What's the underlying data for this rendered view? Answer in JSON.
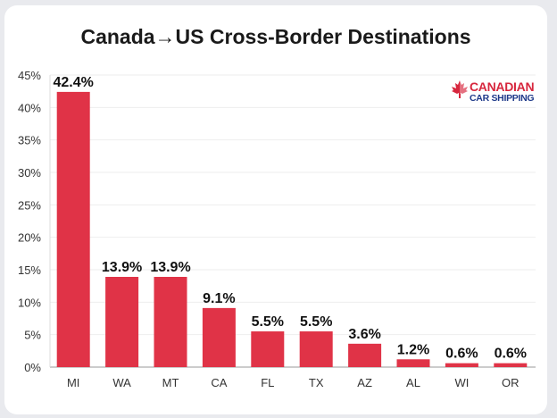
{
  "chart_data": {
    "type": "bar",
    "title": "Canada→US Cross-Border Destinations",
    "categories": [
      "MI",
      "WA",
      "MT",
      "CA",
      "FL",
      "TX",
      "AZ",
      "AL",
      "WI",
      "OR"
    ],
    "values": [
      42.4,
      13.9,
      13.9,
      9.1,
      5.5,
      5.5,
      3.6,
      1.2,
      0.6,
      0.6
    ],
    "data_labels": [
      "42.4%",
      "13.9%",
      "13.9%",
      "9.1%",
      "5.5%",
      "5.5%",
      "3.6%",
      "1.2%",
      "0.6%",
      "0.6%"
    ],
    "xlabel": "",
    "ylabel": "",
    "ylim": [
      0,
      45
    ],
    "yticks": [
      "0%",
      "5%",
      "10%",
      "15%",
      "20%",
      "25%",
      "30%",
      "35%",
      "40%",
      "45%"
    ],
    "grid": "horizontal",
    "legend": "none",
    "bar_color": "#e03347"
  },
  "logo": {
    "line1": "CANADIAN",
    "line2": "CAR SHIPPING",
    "colors": {
      "red": "#d7263d",
      "blue": "#1f3a8a"
    }
  }
}
